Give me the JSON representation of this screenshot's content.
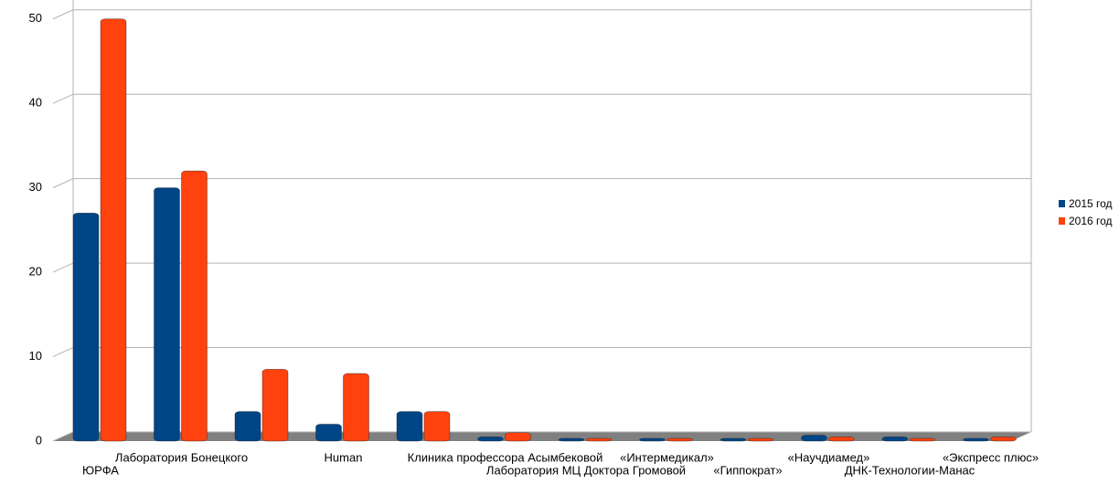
{
  "chart_data": {
    "type": "bar",
    "categories": [
      "ЮРФА",
      "Лаборатория Бонецкого",
      null,
      "Human",
      null,
      "Клиника профессора Асымбековой",
      "Лаборатория МЦ Доктора Громовой",
      "«Интермедикал»",
      "«Гиппократ»",
      "«Научдиамед»",
      "ДНК-Технологии-Манас",
      "«Экспресс плюс»"
    ],
    "series": [
      {
        "name": "2015 год",
        "color": "#004586",
        "values": [
          27,
          30,
          3.5,
          2,
          3.5,
          0.5,
          0,
          0,
          0,
          0.7,
          0.5,
          0
        ]
      },
      {
        "name": "2016 год",
        "color": "#ff420e",
        "values": [
          50,
          32,
          8.5,
          8,
          3.5,
          1,
          0,
          0,
          0,
          0.5,
          0,
          0.5
        ]
      }
    ],
    "ylim": [
      0,
      53
    ],
    "yticks": [
      0,
      10,
      20,
      30,
      40,
      50
    ],
    "grid": true,
    "legend": "right"
  }
}
